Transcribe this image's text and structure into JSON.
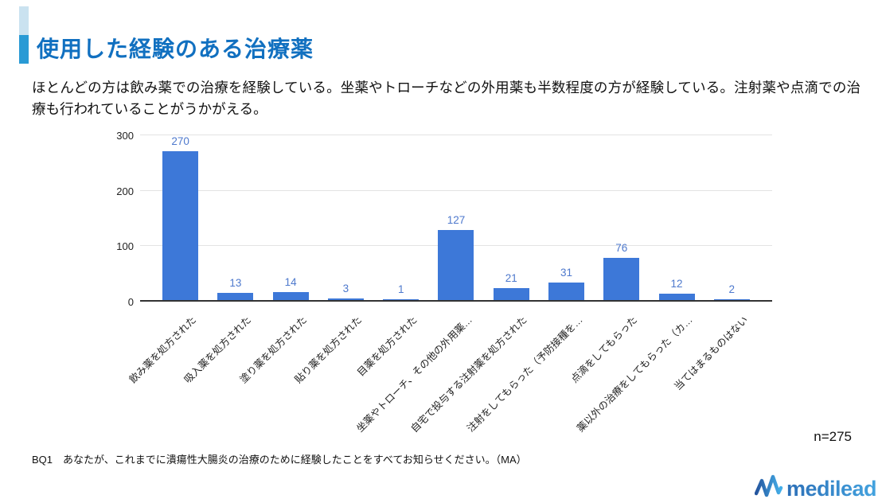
{
  "slide": {
    "title": "使用した経験のある治療薬",
    "summary": "ほとんどの方は飲み薬での治療を経験している。坐薬やトローチなどの外用薬も半数程度の方が経験している。注射薬や点滴での治療も行われていることがうかがえる。",
    "sample_size": "n=275",
    "footnote": "BQ1　あなたが、これまでに潰瘍性大腸炎の治療のために経験したことをすべてお知らせください。（MA）",
    "logo_text": "medilead"
  },
  "colors": {
    "title": "#1170C0",
    "accent_light": "#CAE2F0",
    "accent_dark": "#299AD5",
    "bar": "#3D78D8",
    "value_label": "#4E79CD",
    "gridline": "#E3E3E3",
    "baseline": "#333333",
    "axis_text": "#222222",
    "logo_blue_dark": "#2C6FB7",
    "logo_blue_light": "#44A3DF"
  },
  "chart_data": {
    "type": "bar",
    "title": "",
    "xlabel": "",
    "ylabel": "",
    "categories": [
      "飲み薬を処方された",
      "吸入薬を処方された",
      "塗り薬を処方された",
      "貼り薬を処方された",
      "目薬を処方された",
      "坐薬やトローチ、その他の外用薬…",
      "自宅で投与する注射薬を処方された",
      "注射をしてもらった（予防接種を…",
      "点滴をしてもらった",
      "薬以外の治療をしてもらった（カ…",
      "当てはまるものはない"
    ],
    "values": [
      270,
      13,
      14,
      3,
      1,
      127,
      21,
      31,
      76,
      12,
      2
    ],
    "ylim": [
      0,
      300
    ],
    "yticks": [
      0,
      100,
      200,
      300
    ],
    "grid": true,
    "legend": "none",
    "annotations": "value above each bar",
    "x_tick_rotation_deg": -45
  }
}
